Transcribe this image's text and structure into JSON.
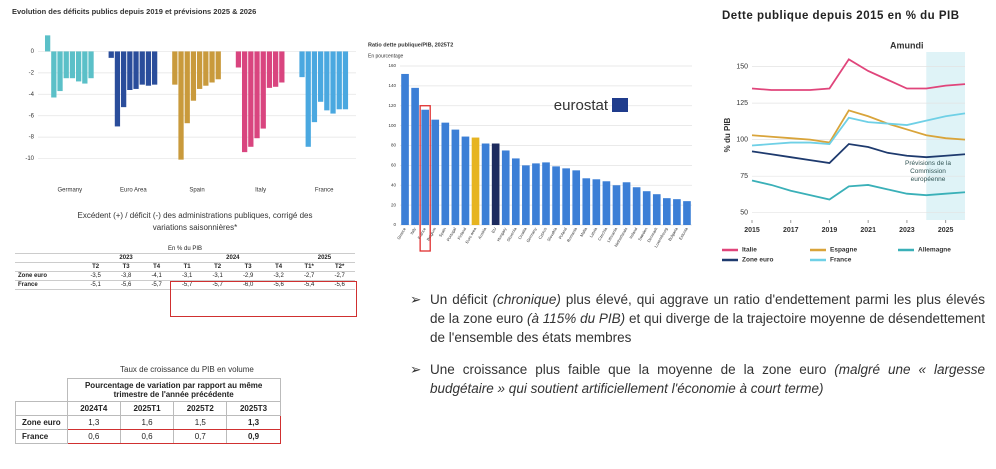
{
  "chart_data": [
    {
      "type": "grouped_bar",
      "title": "Evolution des déficits publics depuis 2019 et prévisions 2025 & 2026",
      "ylim": [
        -12,
        2
      ],
      "yticks": [
        0,
        -2,
        -4,
        -6,
        -8,
        -10
      ],
      "grid": true,
      "series": [
        {
          "name": "Germany",
          "color": "#5bc0c8",
          "values": [
            1.5,
            -4.3,
            -3.7,
            -2.5,
            -2.5,
            -2.8,
            -3.0,
            -2.5
          ]
        },
        {
          "name": "Euro Area",
          "color": "#2a4d9b",
          "values": [
            -0.6,
            -7.0,
            -5.2,
            -3.6,
            -3.5,
            -3.1,
            -3.2,
            -3.1
          ]
        },
        {
          "name": "Spain",
          "color": "#c99a3c",
          "values": [
            -3.1,
            -10.1,
            -6.7,
            -4.6,
            -3.5,
            -3.2,
            -2.9,
            -2.6
          ]
        },
        {
          "name": "Italy",
          "color": "#d9457f",
          "values": [
            -1.5,
            -9.4,
            -8.9,
            -8.1,
            -7.2,
            -3.4,
            -3.3,
            -2.9
          ]
        },
        {
          "name": "France",
          "color": "#4aa8e0",
          "values": [
            -2.4,
            -8.9,
            -6.6,
            -4.7,
            -5.5,
            -5.8,
            -5.4,
            -5.4
          ]
        }
      ]
    },
    {
      "type": "bar",
      "title": "Ratio dette publique/PIB, 2025T2",
      "subtitle": "En pourcentage",
      "logo": "eurostat",
      "ylim": [
        0,
        160
      ],
      "yticks": [
        0,
        20,
        40,
        60,
        80,
        100,
        120,
        140,
        160
      ],
      "grid": true,
      "categories": [
        "Greece",
        "Italy",
        "France",
        "Belgium",
        "Spain",
        "Portugal",
        "Finland",
        "Euro area",
        "Austria",
        "EU",
        "Hungary",
        "Slovenia",
        "Croatia",
        "Germany",
        "Cyprus",
        "Slovakia",
        "Poland",
        "Romania",
        "Malta",
        "Latvia",
        "Czechia",
        "Lithuania",
        "Netherlands",
        "Ireland",
        "Sweden",
        "Denmark",
        "Luxembourg",
        "Bulgaria",
        "Estonia"
      ],
      "values": [
        152,
        138,
        116,
        106,
        103,
        96,
        89,
        88,
        82,
        82,
        75,
        67,
        60,
        62,
        63,
        59,
        57,
        55,
        47,
        46,
        44,
        40,
        43,
        38,
        34,
        31,
        27,
        26,
        24
      ],
      "colors": [
        "#3c7fd6",
        "#3c7fd6",
        "#3c7fd6",
        "#3c7fd6",
        "#3c7fd6",
        "#3c7fd6",
        "#3c7fd6",
        "#e6b422",
        "#3c7fd6",
        "#1d2b5e",
        "#3c7fd6",
        "#3c7fd6",
        "#3c7fd6",
        "#3c7fd6",
        "#3c7fd6",
        "#3c7fd6",
        "#3c7fd6",
        "#3c7fd6",
        "#3c7fd6",
        "#3c7fd6",
        "#3c7fd6",
        "#3c7fd6",
        "#3c7fd6",
        "#3c7fd6",
        "#3c7fd6",
        "#3c7fd6",
        "#3c7fd6",
        "#3c7fd6",
        "#3c7fd6"
      ],
      "outline": {
        "index": 2,
        "color": "#e03030"
      }
    },
    {
      "type": "line",
      "title": "Dette publique depuis 2015 en % du PIB",
      "ylabel": "% du PIB",
      "source": "Amundi",
      "annotation": "Prévisions de la Commission européenne",
      "shaded_from": 2024,
      "xlim": [
        2015,
        2026
      ],
      "xticks": [
        2015,
        2017,
        2019,
        2021,
        2023,
        2025
      ],
      "ylim": [
        45,
        160
      ],
      "yticks": [
        50,
        75,
        100,
        125,
        150
      ],
      "grid": true,
      "x": [
        2015,
        2016,
        2017,
        2018,
        2019,
        2020,
        2021,
        2022,
        2023,
        2024,
        2025,
        2026
      ],
      "series": [
        {
          "name": "Italie",
          "color": "#e0457b",
          "values": [
            135,
            134,
            134,
            134,
            135,
            155,
            147,
            141,
            135,
            135,
            137,
            138
          ]
        },
        {
          "name": "Espagne",
          "color": "#d9a43a",
          "values": [
            103,
            102,
            101,
            100,
            98,
            120,
            116,
            111,
            107,
            103,
            101,
            100
          ]
        },
        {
          "name": "Allemagne",
          "color": "#3ab0b8",
          "values": [
            72,
            69,
            65,
            62,
            59,
            68,
            69,
            66,
            63,
            62,
            63,
            64
          ]
        },
        {
          "name": "Zone euro",
          "color": "#1e3a6e",
          "values": [
            92,
            90,
            88,
            86,
            84,
            97,
            95,
            91,
            89,
            88,
            89,
            90
          ]
        },
        {
          "name": "France",
          "color": "#6fd0e6",
          "values": [
            96,
            97,
            98,
            98,
            97,
            115,
            112,
            111,
            110,
            113,
            116,
            118
          ]
        }
      ]
    }
  ],
  "deficit_table": {
    "caption": "Excédent (+) / déficit (-) des administrations publiques, corrigé des variations saisonnières*",
    "unit": "En % du PIB",
    "year_groups": [
      {
        "label": "2023",
        "span": 3
      },
      {
        "label": "2024",
        "span": 4
      },
      {
        "label": "2025",
        "span": 2
      }
    ],
    "quarters": [
      "T2",
      "T3",
      "T4",
      "T1",
      "T2",
      "T3",
      "T4",
      "T1*",
      "T2*"
    ],
    "rows": [
      [
        "Zone euro",
        "-3,5",
        "-3,8",
        "-4,1",
        "-3,1",
        "-3,1",
        "-2,9",
        "-3,2",
        "-2,7",
        "-2,7"
      ],
      [
        "France",
        "-5,1",
        "-5,6",
        "-5,7",
        "-5,7",
        "-5,7",
        "-6,0",
        "-5,6",
        "-5,4",
        "-5,6"
      ]
    ]
  },
  "growth_table": {
    "caption": "Taux de croissance du PIB en volume",
    "header": "Pourcentage de variation par rapport au même trimestre de l'année précédente",
    "columns": [
      "2024T4",
      "2025T1",
      "2025T2",
      "2025T3"
    ],
    "rows": [
      [
        "Zone euro",
        "1,3",
        "1,6",
        "1,5",
        "1,3"
      ],
      [
        "France",
        "0,6",
        "0,6",
        "0,7",
        "0,9"
      ]
    ]
  },
  "bullets": [
    [
      {
        "text": "Un déficit "
      },
      {
        "text": "(chronique)",
        "italic": true
      },
      {
        "text": " plus élevé, qui aggrave un ratio d'endettement parmi les plus élevés de la zone euro "
      },
      {
        "text": "(à 115% du PIB)",
        "italic": true
      },
      {
        "text": " et qui diverge de la trajectoire moyenne de désendettement de l'ensemble des états membres"
      }
    ],
    [
      {
        "text": "Une croissance plus faible que la moyenne de la zone euro "
      },
      {
        "text": "(malgré une « largesse budgétaire » qui soutient artificiellement l'économie à court terme)",
        "italic": true
      }
    ]
  ]
}
